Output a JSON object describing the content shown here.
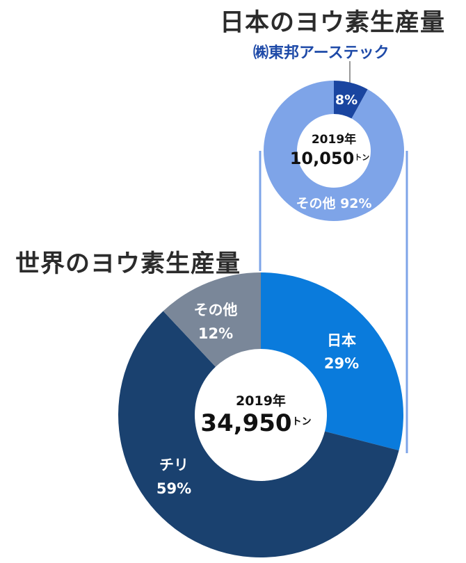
{
  "japan_chart": {
    "title": "日本のヨウ素生産量",
    "company_label": "㈱東邦アーステック",
    "year": "2019年",
    "total": "10,050",
    "unit": "トン",
    "segments": [
      {
        "name": "㈱東邦アーステック",
        "label": "8%",
        "value": 8,
        "color": "#1a45a0"
      },
      {
        "name": "その他",
        "label": "その他 92%",
        "value": 92,
        "color": "#7ea4e8"
      }
    ]
  },
  "world_chart": {
    "title": "世界のヨウ素生産量",
    "year": "2019年",
    "total": "34,950",
    "unit": "トン",
    "segments": [
      {
        "name": "日本",
        "pct": "29%",
        "value": 29,
        "color": "#0a7bdc"
      },
      {
        "name": "チリ",
        "pct": "59%",
        "value": 59,
        "color": "#1a416f"
      },
      {
        "name": "その他",
        "pct": "12%",
        "value": 12,
        "color": "#7a8799"
      }
    ]
  },
  "connector_color": "#7ea4e8",
  "chart_data": [
    {
      "type": "pie",
      "title": "日本のヨウ素生産量",
      "subtitle": "2019年 10,050トン",
      "categories": [
        "㈱東邦アーステック",
        "その他"
      ],
      "values": [
        8,
        92
      ],
      "unit": "%"
    },
    {
      "type": "pie",
      "title": "世界のヨウ素生産量",
      "subtitle": "2019年 34,950トン",
      "categories": [
        "日本",
        "チリ",
        "その他"
      ],
      "values": [
        29,
        59,
        12
      ],
      "unit": "%"
    }
  ]
}
